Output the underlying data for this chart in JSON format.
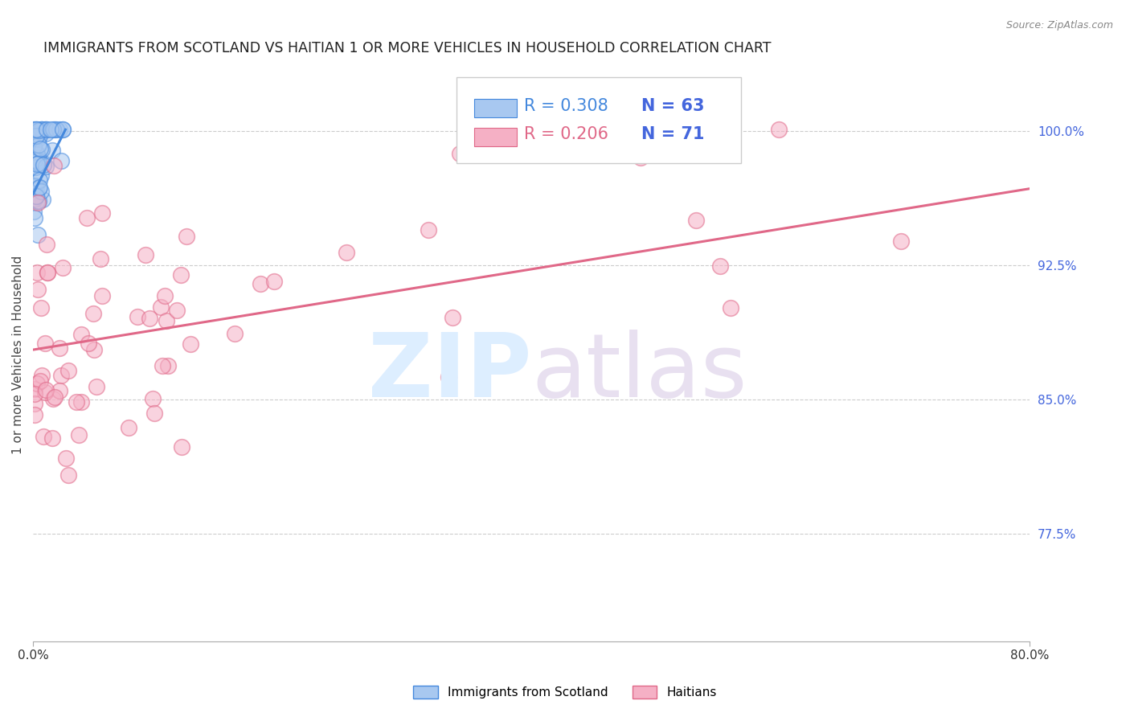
{
  "title": "IMMIGRANTS FROM SCOTLAND VS HAITIAN 1 OR MORE VEHICLES IN HOUSEHOLD CORRELATION CHART",
  "source": "Source: ZipAtlas.com",
  "ylabel": "1 or more Vehicles in Household",
  "ytick_labels": [
    "100.0%",
    "92.5%",
    "85.0%",
    "77.5%"
  ],
  "ytick_values": [
    1.0,
    0.925,
    0.85,
    0.775
  ],
  "xmin": 0.0,
  "xmax": 0.8,
  "ymin": 0.715,
  "ymax": 1.035,
  "legend_r_blue": "R = 0.308",
  "legend_n_blue": "N = 63",
  "legend_r_pink": "R = 0.206",
  "legend_n_pink": "N = 71",
  "label_blue": "Immigrants from Scotland",
  "label_pink": "Haitians",
  "color_blue": "#a8c8f0",
  "color_pink": "#f5b0c5",
  "color_line_blue": "#4488dd",
  "color_line_pink": "#e06888",
  "color_axis_right": "#4466dd",
  "blue_trend_x0": 0.0,
  "blue_trend_y0": 0.965,
  "blue_trend_x1": 0.026,
  "blue_trend_y1": 1.001,
  "pink_trend_x0": 0.0,
  "pink_trend_y0": 0.878,
  "pink_trend_x1": 0.8,
  "pink_trend_y1": 0.968
}
